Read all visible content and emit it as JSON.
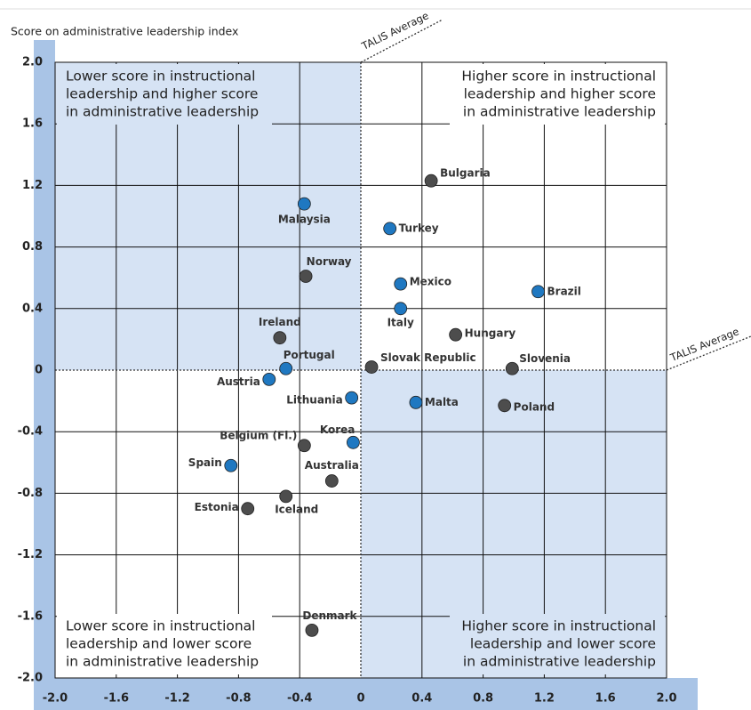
{
  "chart_data": {
    "type": "scatter",
    "y_axis_label": "Score on administrative leadership index",
    "reference_line_label_x": "TALIS Average",
    "reference_line_label_y": "TALIS Average",
    "quadrant_labels": {
      "top_left": [
        "Lower score in instructional",
        "leadership and higher score",
        "in administrative leadership"
      ],
      "top_right": [
        "Higher score in instructional",
        "leadership and higher score",
        "in administrative leadership"
      ],
      "bottom_left": [
        "Lower score in instructional",
        "leadership and lower score",
        "in administrative leadership"
      ],
      "bottom_right": [
        "Higher score in instructional",
        "leadership and lower score",
        "in administrative leadership"
      ]
    },
    "xlim": [
      -2,
      2
    ],
    "ylim": [
      -2,
      2
    ],
    "xticks": [
      {
        "value": -2,
        "label": "-2.0"
      },
      -1.6,
      -1.2,
      -0.8,
      -0.4,
      0,
      0.4,
      0.8,
      1.2,
      1.6,
      {
        "value": 2,
        "label": "2.0"
      }
    ],
    "yticks": [
      {
        "value": -2,
        "label": "-2.0"
      },
      -1.6,
      -1.2,
      -0.8,
      -0.4,
      0,
      0.4,
      0.8,
      1.2,
      1.6,
      {
        "value": 2,
        "label": "2.0"
      }
    ],
    "grid": true,
    "points": [
      {
        "label": "Bulgaria",
        "x": 0.46,
        "y": 1.23,
        "color": "#4d4d4d"
      },
      {
        "label": "Malaysia",
        "x": -0.37,
        "y": 1.08,
        "color": "#1f78c1"
      },
      {
        "label": "Turkey",
        "x": 0.19,
        "y": 0.92,
        "color": "#1f78c1"
      },
      {
        "label": "Norway",
        "x": -0.36,
        "y": 0.61,
        "color": "#4d4d4d"
      },
      {
        "label": "Mexico",
        "x": 0.26,
        "y": 0.56,
        "color": "#1f78c1"
      },
      {
        "label": "Brazil",
        "x": 1.16,
        "y": 0.51,
        "color": "#1f78c1"
      },
      {
        "label": "Italy",
        "x": 0.26,
        "y": 0.4,
        "color": "#1f78c1"
      },
      {
        "label": "Ireland",
        "x": -0.53,
        "y": 0.21,
        "color": "#4d4d4d"
      },
      {
        "label": "Hungary",
        "x": 0.62,
        "y": 0.23,
        "color": "#4d4d4d"
      },
      {
        "label": "Portugal",
        "x": -0.49,
        "y": 0.01,
        "color": "#1f78c1"
      },
      {
        "label": "Slovak Republic",
        "x": 0.07,
        "y": 0.02,
        "color": "#4d4d4d"
      },
      {
        "label": "Slovenia",
        "x": 0.99,
        "y": 0.01,
        "color": "#4d4d4d"
      },
      {
        "label": "Austria",
        "x": -0.6,
        "y": -0.06,
        "color": "#1f78c1"
      },
      {
        "label": "Lithuania",
        "x": -0.06,
        "y": -0.18,
        "color": "#1f78c1"
      },
      {
        "label": "Malta",
        "x": 0.36,
        "y": -0.21,
        "color": "#1f78c1"
      },
      {
        "label": "Poland",
        "x": 0.94,
        "y": -0.23,
        "color": "#4d4d4d"
      },
      {
        "label": "Belgium (Fl.)",
        "x": -0.37,
        "y": -0.49,
        "color": "#4d4d4d"
      },
      {
        "label": "Korea",
        "x": -0.05,
        "y": -0.47,
        "color": "#1f78c1"
      },
      {
        "label": "Spain",
        "x": -0.85,
        "y": -0.62,
        "color": "#1f78c1"
      },
      {
        "label": "Australia",
        "x": -0.19,
        "y": -0.72,
        "color": "#4d4d4d"
      },
      {
        "label": "Iceland",
        "x": -0.49,
        "y": -0.82,
        "color": "#4d4d4d"
      },
      {
        "label": "Estonia",
        "x": -0.74,
        "y": -0.9,
        "color": "#4d4d4d"
      },
      {
        "label": "Denmark",
        "x": -0.32,
        "y": -1.69,
        "color": "#4d4d4d"
      }
    ]
  }
}
